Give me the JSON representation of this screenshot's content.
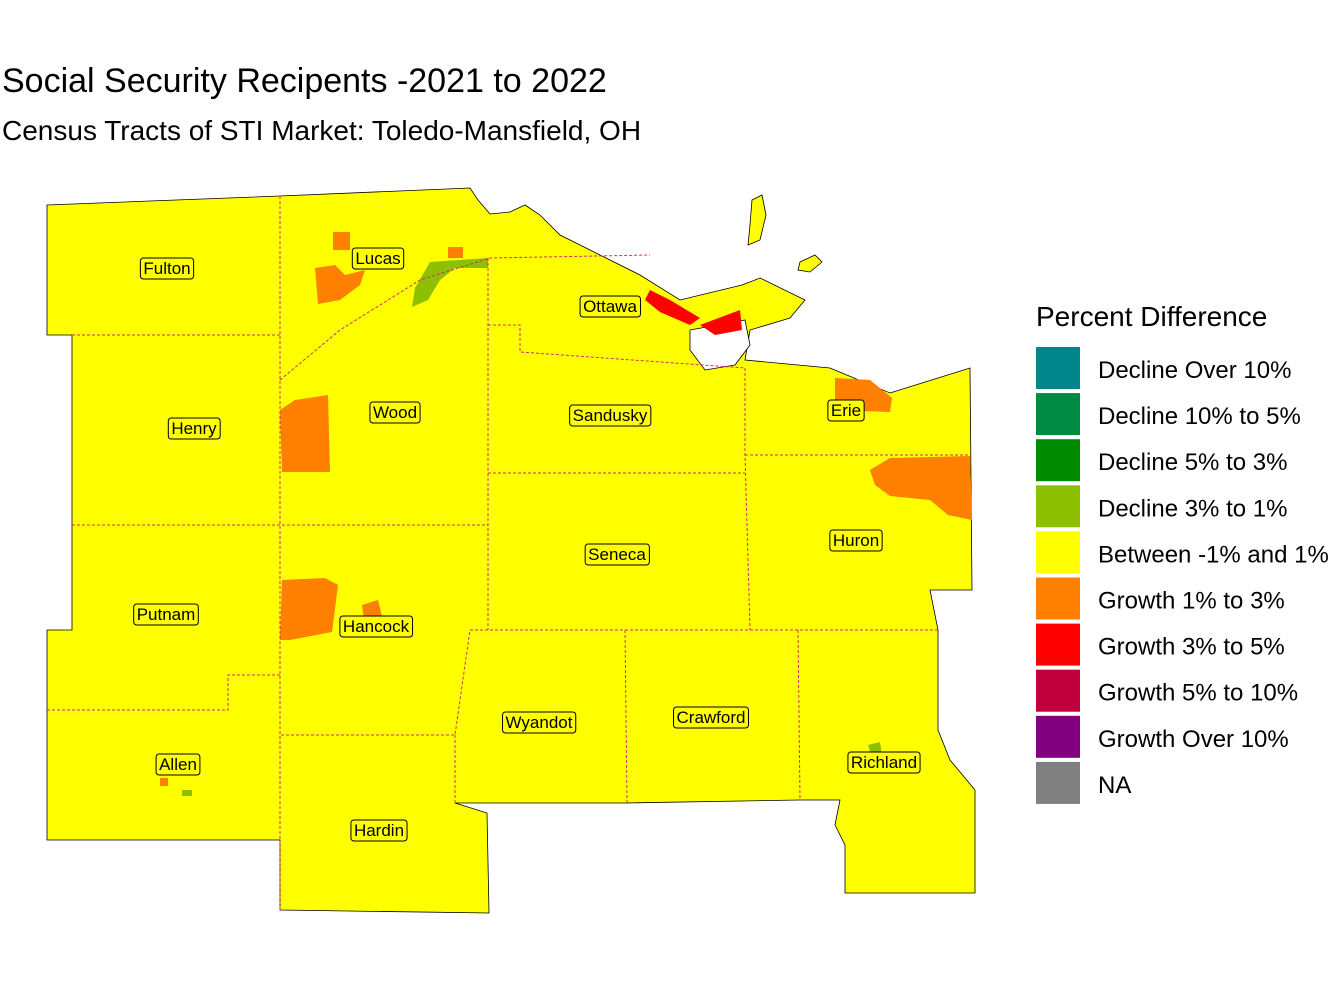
{
  "title": "Social Security Recipents -2021 to 2022",
  "subtitle": "Census Tracts of STI Market: Toledo-Mansfield, OH",
  "legend": {
    "title": "Percent Difference",
    "items": [
      {
        "label": "Decline Over 10%",
        "color": "#00868B"
      },
      {
        "label": "Decline 10% to 5%",
        "color": "#008B45"
      },
      {
        "label": "Decline 5% to 3%",
        "color": "#008B00"
      },
      {
        "label": "Decline 3% to 1%",
        "color": "#8DC000"
      },
      {
        "label": "Between -1% and 1%",
        "color": "#FFFF00"
      },
      {
        "label": "Growth 1% to 3%",
        "color": "#FF7F00"
      },
      {
        "label": "Growth 3% to 5%",
        "color": "#FF0000"
      },
      {
        "label": "Growth 5% to 10%",
        "color": "#C0003C"
      },
      {
        "label": "Growth Over 10%",
        "color": "#800080"
      },
      {
        "label": "NA",
        "color": "#808080"
      }
    ]
  },
  "counties": [
    {
      "name": "Fulton"
    },
    {
      "name": "Lucas"
    },
    {
      "name": "Ottawa"
    },
    {
      "name": "Henry"
    },
    {
      "name": "Wood"
    },
    {
      "name": "Sandusky"
    },
    {
      "name": "Erie"
    },
    {
      "name": "Huron"
    },
    {
      "name": "Seneca"
    },
    {
      "name": "Putnam"
    },
    {
      "name": "Hancock"
    },
    {
      "name": "Wyandot"
    },
    {
      "name": "Crawford"
    },
    {
      "name": "Allen"
    },
    {
      "name": "Richland"
    },
    {
      "name": "Hardin"
    }
  ]
}
